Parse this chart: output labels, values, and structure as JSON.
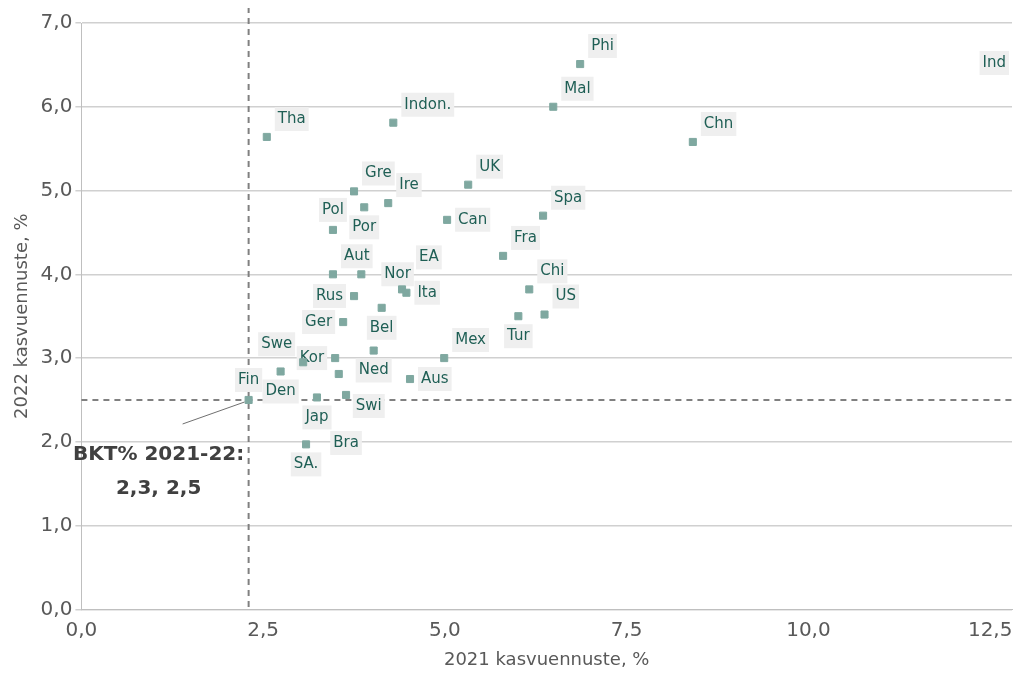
{
  "chart_data": {
    "type": "scatter",
    "xlabel": "2021 kasvuennuste, %",
    "ylabel": "2022 kasvuennuste, %",
    "marker": "square",
    "grid": "y",
    "legend": false,
    "xlim": [
      0,
      12.8
    ],
    "xticks": [
      {
        "value": 0,
        "label": "0,0"
      },
      {
        "value": 2.5,
        "label": "2,5"
      },
      {
        "value": 5,
        "label": "5,0"
      },
      {
        "value": 7.5,
        "label": "7,5"
      },
      {
        "value": 10,
        "label": "10,0"
      },
      {
        "value": 12.5,
        "label": "12,5"
      }
    ],
    "ylim": [
      0,
      7
    ],
    "yticks": [
      {
        "value": 0,
        "label": "0,0"
      },
      {
        "value": 1,
        "label": "1,0"
      },
      {
        "value": 2,
        "label": "2,0"
      },
      {
        "value": 3,
        "label": "3,0"
      },
      {
        "value": 4,
        "label": "4,0"
      },
      {
        "value": 5,
        "label": "5,0"
      },
      {
        "value": 6,
        "label": "6,0"
      },
      {
        "value": 7,
        "label": "7,0"
      }
    ],
    "series": [
      {
        "color": "#7fa8a0",
        "x": [
          6.86,
          6.49,
          8.41,
          2.55,
          4.29,
          5.32,
          3.75,
          4.22,
          3.89,
          5.03,
          6.35,
          3.46,
          5.8,
          3.46,
          3.85,
          6.16,
          4.41,
          4.47,
          3.75,
          4.13,
          6.01,
          6.37,
          3.6,
          4.02,
          4.99,
          3.05,
          2.74,
          3.49,
          3.54,
          4.52,
          3.24,
          3.64,
          2.3,
          3.09
        ],
        "values": [
          6.51,
          6.0,
          5.58,
          5.64,
          5.81,
          5.07,
          4.99,
          4.85,
          4.8,
          4.65,
          4.7,
          4.53,
          4.22,
          4.0,
          4.0,
          3.82,
          3.82,
          3.78,
          3.74,
          3.6,
          3.5,
          3.52,
          3.43,
          3.09,
          3.0,
          2.95,
          2.84,
          3.0,
          2.81,
          2.75,
          2.53,
          2.56,
          2.5,
          1.97
        ],
        "value_labels": [
          "Phi",
          "Mal",
          "Chn",
          "Tha",
          "Indon.",
          "UK",
          "Gre",
          "Ire",
          "Por",
          "Can",
          "Spa",
          "Pol",
          "Fra",
          "Aut",
          "Nor",
          "Chi",
          "EA",
          "Ita",
          "Rus",
          "Bel",
          "Tur",
          "US",
          "Ger",
          "Ned",
          "Mex",
          "Swe",
          "Den",
          "Kor",
          "Swi",
          "Aus",
          "Jap",
          "Bra",
          "Fin",
          "SA."
        ]
      }
    ],
    "ref_lines": [
      {
        "axis": "x",
        "value": 2.3,
        "color": "#808080",
        "line_style": "dashed"
      },
      {
        "axis": "y",
        "value": 2.5,
        "color": "#808080",
        "line_style": "dashed"
      }
    ],
    "annotations": [
      "Ind",
      {
        "text": "BKT% 2021-22: 2,3, 2,5",
        "x": 2.3,
        "y": 2.5
      }
    ]
  }
}
